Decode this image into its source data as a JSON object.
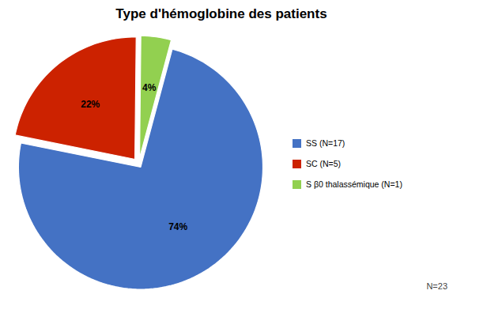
{
  "chart_data": {
    "type": "pie",
    "title": "Type d'hémoglobine des patients",
    "categories": [
      "SS (N=17)",
      "SC (N=5)",
      "S β0 thalassémique (N=1)"
    ],
    "values": [
      74,
      22,
      4
    ],
    "value_labels": [
      "74%",
      "22%",
      "4%"
    ],
    "colors": [
      "#4472C4",
      "#CC2200",
      "#92D050"
    ],
    "data_labels": true,
    "legend": "right",
    "annotations": [
      "N=23"
    ]
  }
}
